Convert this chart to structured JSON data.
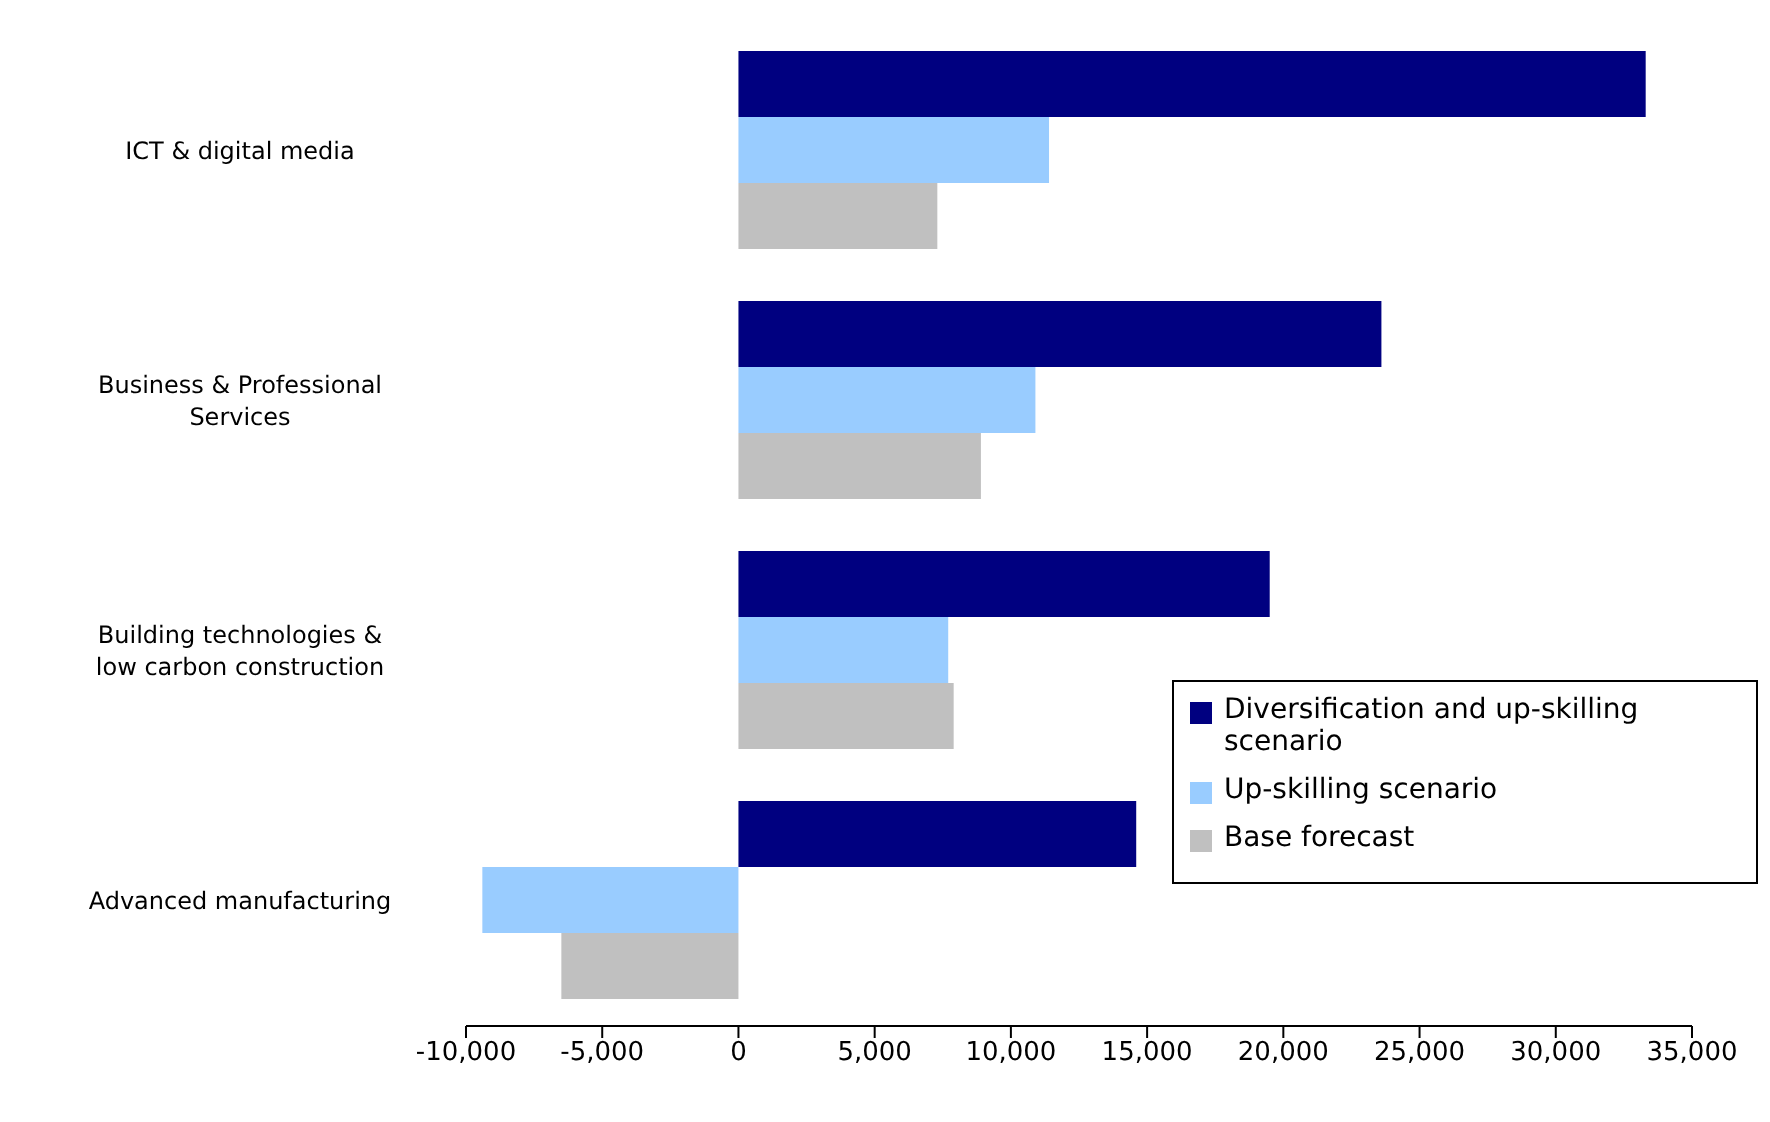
{
  "chart_data": {
    "type": "bar",
    "orientation": "horizontal",
    "categories": [
      "ICT & digital media",
      "Business & Professional Services",
      "Building technologies & low carbon construction",
      "Advanced manufacturing"
    ],
    "series": [
      {
        "name": "Diversification and up-skilling scenario",
        "color": "#000080",
        "values": [
          33300,
          23600,
          19500,
          14600
        ]
      },
      {
        "name": "Up-skilling scenario",
        "color": "#99ccff",
        "values": [
          11400,
          10900,
          7700,
          -9400
        ]
      },
      {
        "name": "Base forecast",
        "color": "#c0c0c0",
        "values": [
          7300,
          8900,
          7900,
          -6500
        ]
      }
    ],
    "xlim": [
      -10000,
      35000
    ],
    "xticks": [
      {
        "value": -10000,
        "label": "-10,000"
      },
      {
        "value": -5000,
        "label": "-5,000"
      },
      0,
      {
        "value": 5000,
        "label": "5,000"
      },
      {
        "value": 10000,
        "label": "10,000"
      },
      {
        "value": 15000,
        "label": "15,000"
      },
      {
        "value": 20000,
        "label": "20,000"
      },
      {
        "value": 25000,
        "label": "25,000"
      },
      {
        "value": 30000,
        "label": "30,000"
      },
      {
        "value": 35000,
        "label": "35,000"
      }
    ],
    "grid": false,
    "legend": "bottom right"
  }
}
